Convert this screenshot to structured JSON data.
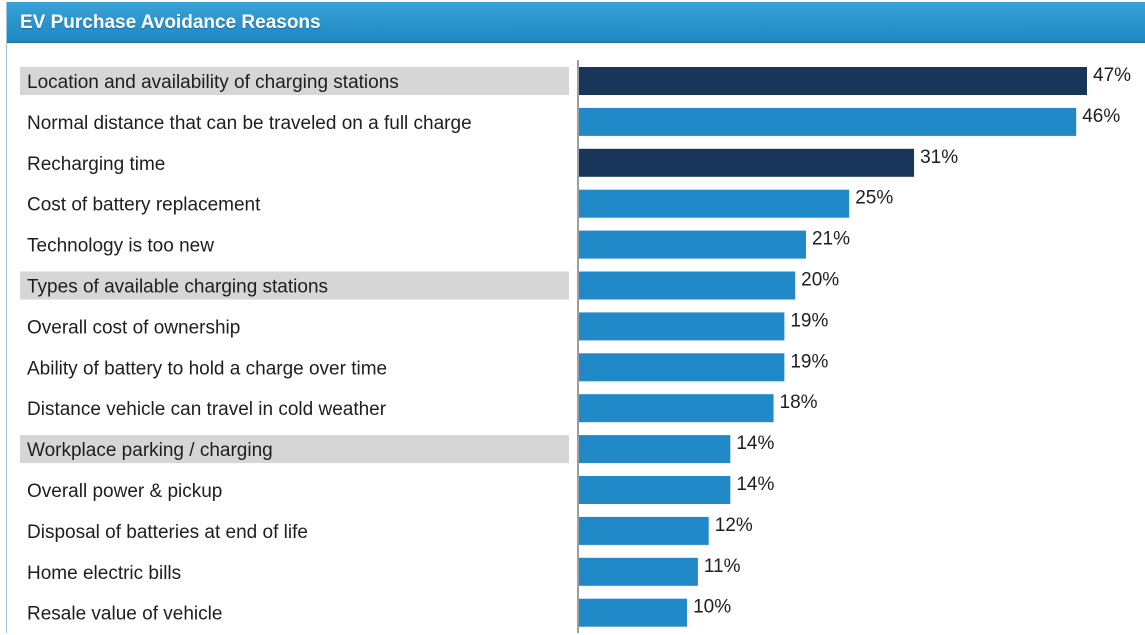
{
  "header": {
    "title": "EV Purchase Avoidance Reasons"
  },
  "colors": {
    "highlight_bar": "#17365a",
    "normal_bar": "#2189c8",
    "highlight_band": "#d6d6d6"
  },
  "chart_data": {
    "type": "bar",
    "orientation": "horizontal",
    "title": "EV Purchase Avoidance Reasons",
    "xlabel": "",
    "ylabel": "",
    "xlim": [
      0,
      47
    ],
    "grid": false,
    "categories": [
      "Location and availability of charging stations",
      "Normal distance that can be traveled on a full charge",
      "Recharging time",
      "Cost of battery replacement",
      "Technology is too new",
      "Types of available charging stations",
      "Overall cost of ownership",
      "Ability of battery to hold a charge over time",
      "Distance vehicle can travel in cold weather",
      "Workplace parking / charging",
      "Overall power & pickup",
      "Disposal of batteries at end of life",
      "Home electric bills",
      "Resale value of vehicle"
    ],
    "values": [
      47,
      46,
      31,
      25,
      21,
      20,
      19,
      19,
      18,
      14,
      14,
      12,
      11,
      10
    ],
    "value_labels": [
      "47%",
      "46%",
      "31%",
      "25%",
      "21%",
      "20%",
      "19%",
      "19%",
      "18%",
      "14%",
      "14%",
      "12%",
      "11%",
      "10%"
    ],
    "highlighted_categories": [
      0,
      5,
      9
    ],
    "dark_bars": [
      0,
      2
    ]
  }
}
